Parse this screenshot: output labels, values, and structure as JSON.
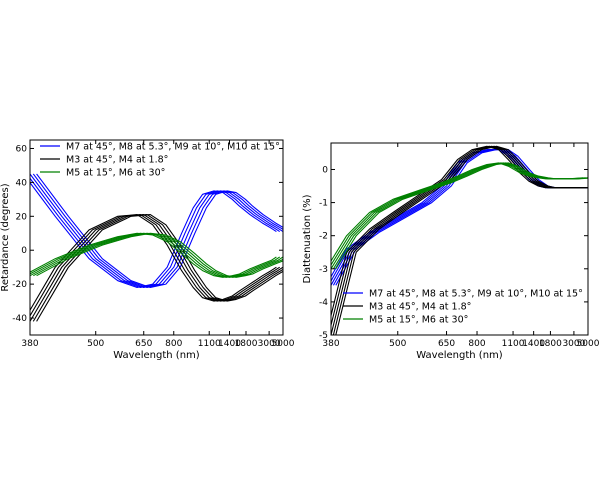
{
  "chart_data": [
    {
      "type": "line",
      "ylabel": "Retardance (degrees)",
      "xlabel": "Wavelength (nm)",
      "xscale": "reciprocal",
      "xlim": [
        380,
        5000
      ],
      "ylim": [
        -50,
        65
      ],
      "x_ticks": [
        380,
        500,
        650,
        800,
        1100,
        1400,
        1800,
        3000,
        5000
      ],
      "y_ticks": [
        -40,
        -20,
        0,
        20,
        40,
        60
      ],
      "legend_position": "top",
      "series": [
        {
          "name": "M7 at 45°, M8 at 5.3°, M9 at 10°, M10 at 15°",
          "color": "#0000ff",
          "x": [
            380,
            430,
            500,
            580,
            650,
            720,
            800,
            900,
            1000,
            1100,
            1250,
            1400,
            1600,
            1800,
            2200,
            3000,
            4000,
            5000
          ],
          "y": [
            45,
            20,
            -5,
            -18,
            -22,
            -20,
            -10,
            10,
            25,
            33,
            35,
            34,
            30,
            26,
            21,
            16,
            13,
            11
          ]
        },
        {
          "name": "M3 at 45°, M4 at 1.8°",
          "color": "#000000",
          "x": [
            380,
            430,
            500,
            580,
            650,
            720,
            800,
            900,
            1000,
            1100,
            1250,
            1400,
            1600,
            1800,
            2200,
            3000,
            4000,
            5000
          ],
          "y": [
            -42,
            -10,
            12,
            20,
            21,
            15,
            3,
            -12,
            -22,
            -28,
            -30,
            -29,
            -27,
            -24,
            -20,
            -15,
            -12,
            -10
          ]
        },
        {
          "name": "M5 at 15°, M6 at 30°",
          "color": "#008000",
          "x": [
            380,
            430,
            500,
            580,
            650,
            720,
            800,
            900,
            1000,
            1100,
            1250,
            1400,
            1600,
            1800,
            2200,
            3000,
            4000,
            5000
          ],
          "y": [
            -15,
            -5,
            3,
            8,
            10,
            9,
            5,
            -2,
            -8,
            -12,
            -15,
            -16,
            -15,
            -14,
            -11,
            -8,
            -6,
            -4
          ]
        }
      ]
    },
    {
      "type": "line",
      "ylabel": "Diattenuation (%)",
      "xlabel": "Wavelength (nm)",
      "xscale": "reciprocal",
      "xlim": [
        380,
        5000
      ],
      "ylim": [
        -5,
        0.8
      ],
      "x_ticks": [
        380,
        500,
        650,
        800,
        1100,
        1400,
        1800,
        3000,
        5000
      ],
      "y_ticks": [
        -5,
        -4,
        -3,
        -2,
        -1,
        0
      ],
      "legend_position": "bottom",
      "series": [
        {
          "name": "M7 at 45°, M8 at 5.3°, M9 at 10°, M10 at 15°",
          "color": "#0000ff",
          "x": [
            380,
            410,
            450,
            500,
            580,
            650,
            720,
            800,
            900,
            1000,
            1100,
            1250,
            1400,
            1600,
            1800,
            2200,
            3000,
            5000
          ],
          "y": [
            -3.5,
            -2.4,
            -1.9,
            -1.5,
            -1.0,
            -0.5,
            0.2,
            0.5,
            0.6,
            0.6,
            0.4,
            0.0,
            -0.3,
            -0.5,
            -0.55,
            -0.55,
            -0.55,
            -0.55
          ]
        },
        {
          "name": "M3 at 45°, M4 at 1.8°",
          "color": "#000000",
          "x": [
            380,
            410,
            450,
            500,
            580,
            650,
            720,
            800,
            900,
            1000,
            1100,
            1250,
            1400,
            1600,
            1800,
            2200,
            3000,
            5000
          ],
          "y": [
            -5.0,
            -2.5,
            -1.8,
            -1.3,
            -0.7,
            -0.3,
            0.3,
            0.6,
            0.7,
            0.6,
            0.3,
            -0.1,
            -0.35,
            -0.5,
            -0.55,
            -0.55,
            -0.55,
            -0.55
          ]
        },
        {
          "name": "M5 at 15°, M6 at 30°",
          "color": "#008000",
          "x": [
            380,
            410,
            450,
            500,
            580,
            650,
            720,
            800,
            900,
            1000,
            1100,
            1250,
            1400,
            1600,
            1800,
            2200,
            3000,
            5000
          ],
          "y": [
            -3.0,
            -2.0,
            -1.3,
            -0.9,
            -0.6,
            -0.4,
            -0.2,
            0.0,
            0.15,
            0.2,
            0.1,
            -0.1,
            -0.2,
            -0.25,
            -0.28,
            -0.28,
            -0.28,
            -0.25
          ]
        }
      ]
    }
  ]
}
